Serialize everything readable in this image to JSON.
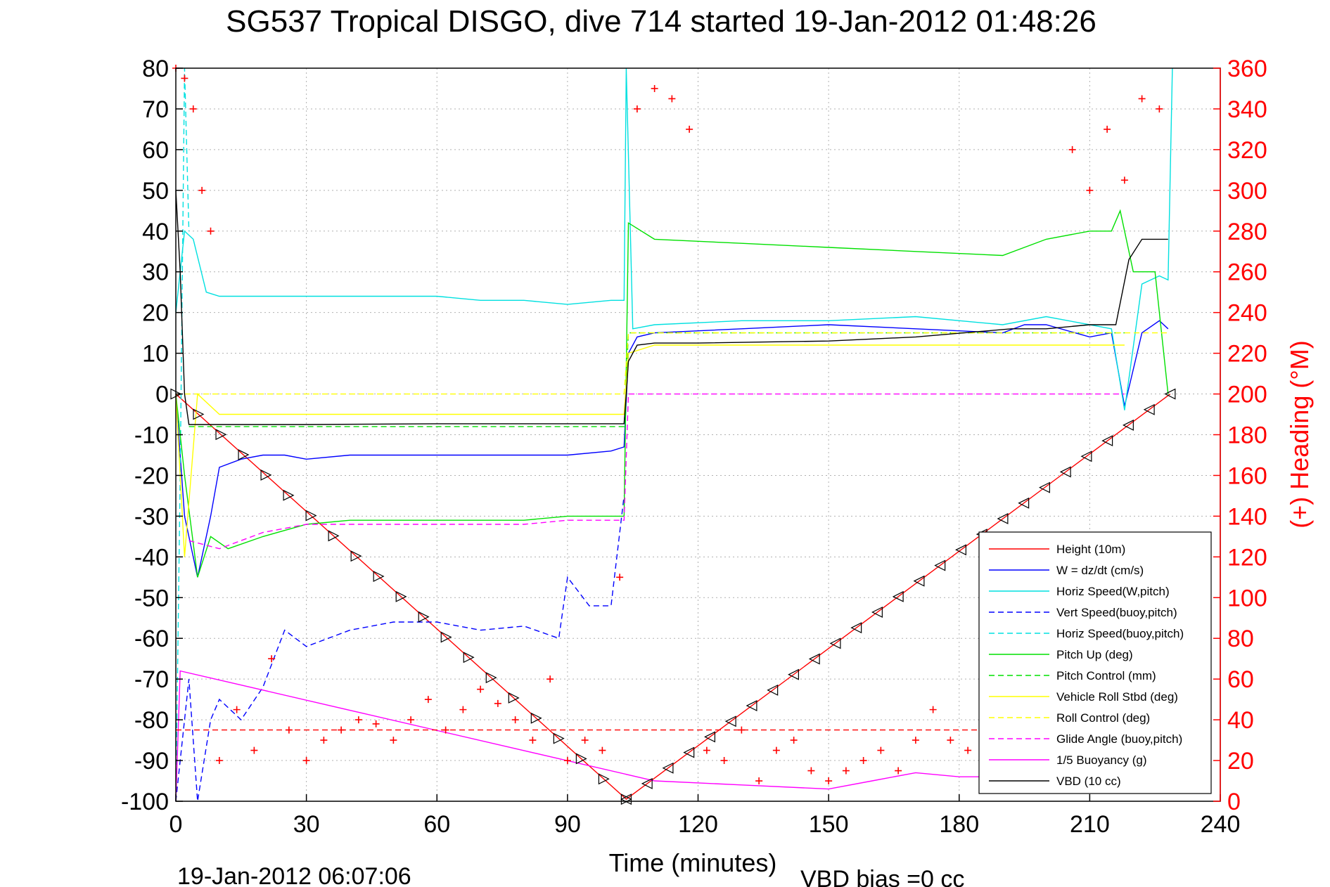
{
  "chart_data": {
    "type": "line",
    "title": "SG537 Tropical DISGO, dive 714 started 19-Jan-2012 01:48:26",
    "xlabel": "Time (minutes)",
    "ylabel_right": "(+) Heading (°M)",
    "footer_left": "19-Jan-2012 06:07:06",
    "footer_right": "VBD bias =0 cc",
    "xlim": [
      0,
      240
    ],
    "ylim": [
      -100,
      80
    ],
    "ylim_right": [
      0,
      360
    ],
    "x_ticks": [
      "0",
      "30",
      "60",
      "90",
      "120",
      "150",
      "180",
      "210",
      "240"
    ],
    "y_ticks": [
      "80",
      "70",
      "60",
      "50",
      "40",
      "30",
      "20",
      "10",
      "0",
      "-10",
      "-20",
      "-30",
      "-40",
      "-50",
      "-60",
      "-70",
      "-80",
      "-90",
      "-100"
    ],
    "y_right_ticks": [
      "360",
      "340",
      "320",
      "300",
      "280",
      "260",
      "240",
      "220",
      "200",
      "180",
      "160",
      "140",
      "120",
      "100",
      "80",
      "60",
      "40",
      "20",
      "0"
    ],
    "grid": true,
    "legend_position": "bottom-right",
    "series": [
      {
        "name": "Height (10m)",
        "color": "#ff0000",
        "style": "solid",
        "x": [
          0,
          103.5,
          228.5
        ],
        "y": [
          0,
          -99.5,
          0
        ]
      },
      {
        "name": "W = dz/dt (cm/s)",
        "color": "#0000ff",
        "style": "solid",
        "x": [
          0,
          2,
          5,
          8,
          10,
          15,
          20,
          25,
          30,
          40,
          50,
          60,
          70,
          80,
          90,
          100,
          103,
          104,
          106,
          110,
          130,
          150,
          170,
          190,
          195,
          200,
          210,
          215,
          218,
          222,
          226,
          228
        ],
        "y": [
          0,
          -30,
          -45,
          -30,
          -18,
          -16,
          -15,
          -15,
          -16,
          -15,
          -15,
          -15,
          -15,
          -15,
          -15,
          -14,
          -13,
          10,
          14,
          15,
          16,
          17,
          16,
          15,
          17,
          17,
          14,
          15,
          -3,
          15,
          18,
          16
        ]
      },
      {
        "name": "Horiz Speed(W,pitch)",
        "color": "#00e0e0",
        "style": "solid",
        "x": [
          0,
          2,
          4,
          7,
          10,
          20,
          30,
          40,
          50,
          60,
          70,
          80,
          90,
          100,
          103,
          103.5,
          105,
          110,
          130,
          150,
          170,
          190,
          200,
          210,
          215,
          218,
          222,
          226,
          228,
          229
        ],
        "y": [
          20,
          40,
          38,
          25,
          24,
          24,
          24,
          24,
          24,
          24,
          23,
          23,
          22,
          23,
          23,
          80,
          16,
          17,
          18,
          18,
          19,
          17,
          19,
          17,
          16,
          -4,
          27,
          29,
          28,
          80
        ]
      },
      {
        "name": "Vert Speed(buoy,pitch)",
        "color": "#0000ff",
        "style": "dashed",
        "x": [
          0,
          3,
          5,
          8,
          10,
          15,
          20,
          25,
          30,
          40,
          50,
          60,
          70,
          80,
          88,
          90,
          95,
          100,
          103
        ],
        "y": [
          -100,
          -70,
          -100,
          -80,
          -75,
          -80,
          -72,
          -58,
          -62,
          -58,
          -56,
          -56,
          -58,
          -57,
          -60,
          -45,
          -52,
          -52,
          -25
        ]
      },
      {
        "name": "Horiz Speed(buoy,pitch)",
        "color": "#00e0e0",
        "style": "dashed",
        "x": [
          0,
          1,
          2,
          3
        ],
        "y": [
          -100,
          -20,
          80,
          40
        ]
      },
      {
        "name": "Pitch Up (deg)",
        "color": "#00e000",
        "style": "solid",
        "x": [
          0,
          2,
          5,
          8,
          12,
          20,
          30,
          40,
          50,
          60,
          70,
          80,
          90,
          100,
          103,
          104,
          110,
          130,
          150,
          170,
          190,
          200,
          210,
          215,
          217,
          220,
          225,
          228
        ],
        "y": [
          0,
          -20,
          -45,
          -35,
          -38,
          -35,
          -32,
          -31,
          -31,
          -31,
          -31,
          -31,
          -30,
          -30,
          -30,
          42,
          38,
          37,
          36,
          35,
          34,
          38,
          40,
          40,
          45,
          30,
          30,
          0
        ]
      },
      {
        "name": "Pitch Control (mm)",
        "color": "#00e000",
        "style": "dashed",
        "x": [
          3,
          103,
          104,
          218
        ],
        "y": [
          -8,
          -8,
          15,
          15
        ]
      },
      {
        "name": "Vehicle Roll Stbd (deg)",
        "color": "#ffff00",
        "style": "solid",
        "x": [
          0,
          2,
          5,
          10,
          20,
          30,
          40,
          50,
          60,
          70,
          80,
          90,
          100,
          103,
          104,
          110,
          130,
          150,
          170,
          190,
          210,
          218
        ],
        "y": [
          0,
          -40,
          0,
          -5,
          -5,
          -5,
          -5,
          -5,
          -5,
          -5,
          -5,
          -5,
          -5,
          -5,
          10,
          12,
          12,
          12,
          12,
          12,
          12,
          12
        ]
      },
      {
        "name": "Roll Control (deg)",
        "color": "#ffff00",
        "style": "dashed",
        "x": [
          0,
          103,
          104,
          228
        ],
        "y": [
          0,
          0,
          15,
          15
        ]
      },
      {
        "name": "Glide Angle (buoy,pitch)",
        "color": "#ff00ff",
        "style": "dashed",
        "x": [
          3,
          10,
          20,
          30,
          40,
          50,
          60,
          70,
          80,
          90,
          100,
          103,
          104,
          218
        ],
        "y": [
          -36,
          -38,
          -34,
          -32,
          -32,
          -32,
          -32,
          -32,
          -32,
          -31,
          -31,
          -31,
          0,
          0
        ]
      },
      {
        "name": "1/5 Buoyancy (g)",
        "color": "#ff00ff",
        "style": "solid",
        "x": [
          0,
          1,
          110,
          130,
          150,
          160,
          170,
          180,
          190,
          200,
          210,
          222,
          228
        ],
        "y": [
          -100,
          -68,
          -95,
          -96,
          -97,
          -95,
          -93,
          -94,
          -94,
          -95,
          -96,
          -91,
          -95
        ]
      },
      {
        "name": "VBD (10 cc)",
        "color": "#000000",
        "style": "solid",
        "x": [
          0,
          1,
          2,
          3,
          30,
          60,
          90,
          103,
          103.5,
          104,
          106,
          110,
          120,
          150,
          160,
          170,
          192,
          200,
          210,
          216,
          219,
          222,
          228
        ],
        "y": [
          50,
          30,
          0,
          -7.5,
          -7.5,
          -7.3,
          -7.3,
          -7.3,
          0,
          8,
          12,
          12.5,
          12.5,
          13,
          13.5,
          14,
          16,
          16,
          17,
          17,
          33,
          38,
          38
        ]
      },
      {
        "name": "Heading",
        "color": "#ff0000",
        "style": "plus",
        "axis": "right",
        "x": [
          0,
          2,
          4,
          6,
          8,
          10,
          14,
          18,
          22,
          26,
          30,
          34,
          38,
          42,
          46,
          50,
          54,
          58,
          62,
          66,
          70,
          74,
          78,
          82,
          86,
          90,
          94,
          98,
          102,
          106,
          110,
          114,
          118,
          122,
          126,
          130,
          134,
          138,
          142,
          146,
          150,
          154,
          158,
          162,
          166,
          170,
          174,
          178,
          182,
          186,
          190,
          194,
          198,
          202,
          206,
          210,
          214,
          218,
          222,
          226
        ],
        "y": [
          360,
          355,
          340,
          300,
          280,
          20,
          45,
          25,
          70,
          35,
          20,
          30,
          35,
          40,
          38,
          30,
          40,
          50,
          35,
          45,
          55,
          48,
          40,
          30,
          60,
          20,
          30,
          25,
          110,
          340,
          350,
          345,
          330,
          25,
          20,
          35,
          10,
          25,
          30,
          15,
          10,
          15,
          20,
          25,
          15,
          30,
          45,
          30,
          25,
          40,
          35,
          30,
          30,
          30,
          320,
          300,
          330,
          305,
          345,
          340
        ]
      },
      {
        "name": "Heading reference",
        "color": "#ff0000",
        "style": "dashed",
        "axis": "right",
        "x": [
          0,
          228
        ],
        "y": [
          35,
          35
        ]
      }
    ]
  }
}
